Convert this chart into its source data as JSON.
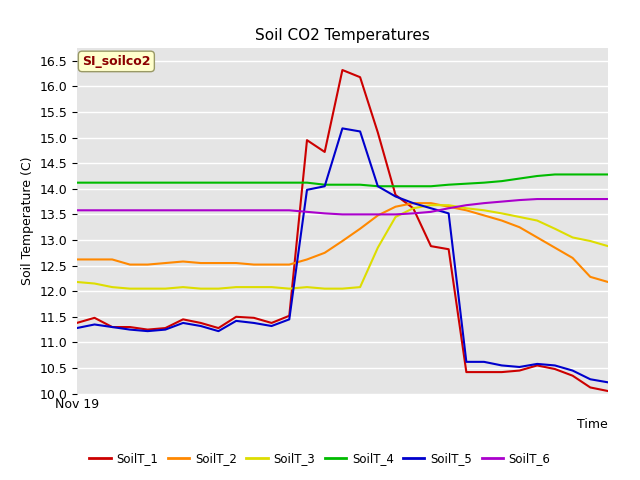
{
  "title": "Soil CO2 Temperatures",
  "xlabel": "Time",
  "ylabel": "Soil Temperature (C)",
  "annotation": "SI_soilco2",
  "ylim": [
    10.0,
    16.75
  ],
  "yticks": [
    10.0,
    10.5,
    11.0,
    11.5,
    12.0,
    12.5,
    13.0,
    13.5,
    14.0,
    14.5,
    15.0,
    15.5,
    16.0,
    16.5
  ],
  "x_label_start": "Nov 19",
  "background_color": "#e5e5e5",
  "series": {
    "SoilT_1": {
      "color": "#cc0000",
      "y": [
        11.38,
        11.48,
        11.3,
        11.3,
        11.25,
        11.28,
        11.45,
        11.38,
        11.28,
        11.5,
        11.48,
        11.38,
        11.52,
        14.95,
        14.72,
        16.32,
        16.18,
        15.1,
        13.88,
        13.62,
        12.88,
        12.82,
        10.42,
        10.42,
        10.42,
        10.45,
        10.55,
        10.48,
        10.35,
        10.12,
        10.05
      ]
    },
    "SoilT_2": {
      "color": "#ff8800",
      "y": [
        12.62,
        12.62,
        12.62,
        12.52,
        12.52,
        12.55,
        12.58,
        12.55,
        12.55,
        12.55,
        12.52,
        12.52,
        12.52,
        12.62,
        12.75,
        12.98,
        13.22,
        13.48,
        13.65,
        13.72,
        13.72,
        13.65,
        13.58,
        13.48,
        13.38,
        13.25,
        13.05,
        12.85,
        12.65,
        12.28,
        12.18
      ]
    },
    "SoilT_3": {
      "color": "#dddd00",
      "y": [
        12.18,
        12.15,
        12.08,
        12.05,
        12.05,
        12.05,
        12.08,
        12.05,
        12.05,
        12.08,
        12.08,
        12.08,
        12.05,
        12.08,
        12.05,
        12.05,
        12.08,
        12.85,
        13.45,
        13.62,
        13.68,
        13.68,
        13.62,
        13.58,
        13.52,
        13.45,
        13.38,
        13.22,
        13.05,
        12.98,
        12.88
      ]
    },
    "SoilT_4": {
      "color": "#00bb00",
      "y": [
        14.12,
        14.12,
        14.12,
        14.12,
        14.12,
        14.12,
        14.12,
        14.12,
        14.12,
        14.12,
        14.12,
        14.12,
        14.12,
        14.12,
        14.08,
        14.08,
        14.08,
        14.05,
        14.05,
        14.05,
        14.05,
        14.08,
        14.1,
        14.12,
        14.15,
        14.2,
        14.25,
        14.28,
        14.28,
        14.28,
        14.28
      ]
    },
    "SoilT_5": {
      "color": "#0000cc",
      "y": [
        11.28,
        11.35,
        11.3,
        11.25,
        11.22,
        11.25,
        11.38,
        11.32,
        11.22,
        11.42,
        11.38,
        11.32,
        11.45,
        13.98,
        14.05,
        15.18,
        15.12,
        14.05,
        13.85,
        13.72,
        13.62,
        13.52,
        10.62,
        10.62,
        10.55,
        10.52,
        10.58,
        10.55,
        10.45,
        10.28,
        10.22
      ]
    },
    "SoilT_6": {
      "color": "#aa00cc",
      "y": [
        13.58,
        13.58,
        13.58,
        13.58,
        13.58,
        13.58,
        13.58,
        13.58,
        13.58,
        13.58,
        13.58,
        13.58,
        13.58,
        13.55,
        13.52,
        13.5,
        13.5,
        13.5,
        13.5,
        13.52,
        13.55,
        13.62,
        13.68,
        13.72,
        13.75,
        13.78,
        13.8,
        13.8,
        13.8,
        13.8,
        13.8
      ]
    }
  },
  "legend_order": [
    "SoilT_1",
    "SoilT_2",
    "SoilT_3",
    "SoilT_4",
    "SoilT_5",
    "SoilT_6"
  ]
}
